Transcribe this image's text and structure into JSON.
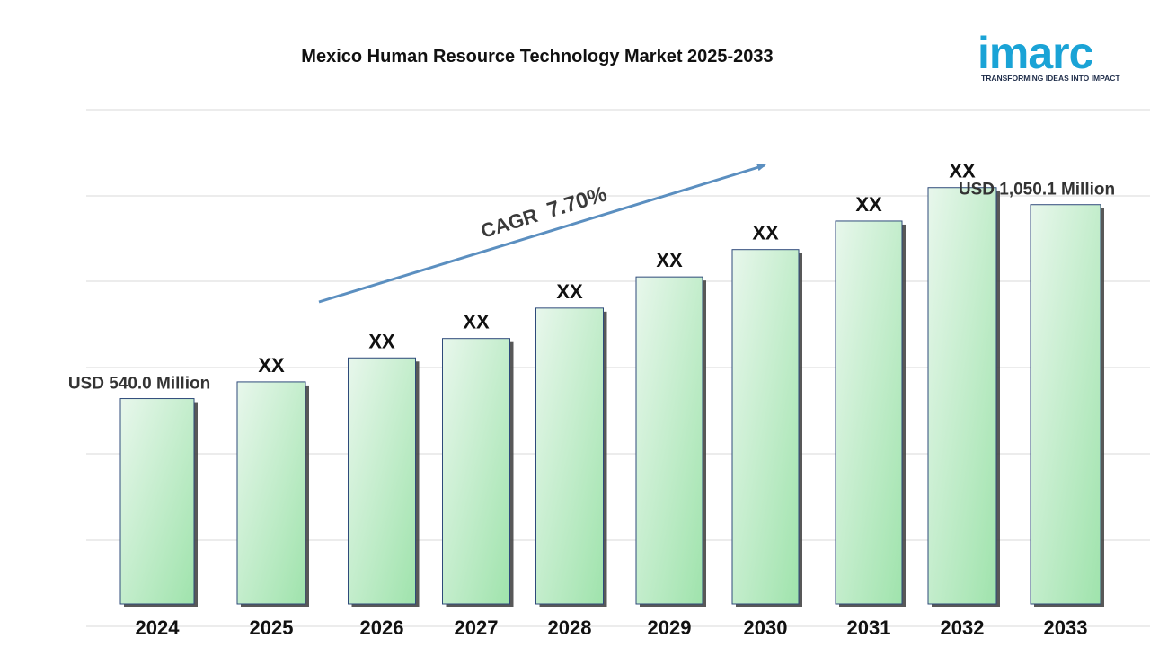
{
  "logo": {
    "brand": "imarc",
    "tagline": "TRANSFORMING IDEAS INTO IMPACT",
    "color": "#1aa3d6"
  },
  "chart_data": {
    "type": "bar",
    "title": "Mexico Human Resource Technology Market 2025-2033",
    "categories": [
      "2024",
      "2025",
      "2026",
      "2027",
      "2028",
      "2029",
      "2030",
      "2031",
      "2032",
      "2033"
    ],
    "values": [
      540.0,
      584,
      647,
      698,
      778,
      860,
      932,
      1007,
      1095,
      1050.1
    ],
    "data_labels": [
      "USD 540.0 Million",
      "XX",
      "XX",
      "XX",
      "XX",
      "XX",
      "XX",
      "XX",
      "XX",
      "USD  1,050.1 Million"
    ],
    "ylim": [
      0,
      1300
    ],
    "grid": true,
    "annotation": {
      "label": "CAGR",
      "value": "7.70%"
    },
    "colors": {
      "bar_top": "#e8f7ec",
      "bar_bottom": "#9fe3ac",
      "bar_edge": "#2e4a7a",
      "arrow": "#5b8fc0",
      "grid": "#d9d9d9"
    }
  }
}
